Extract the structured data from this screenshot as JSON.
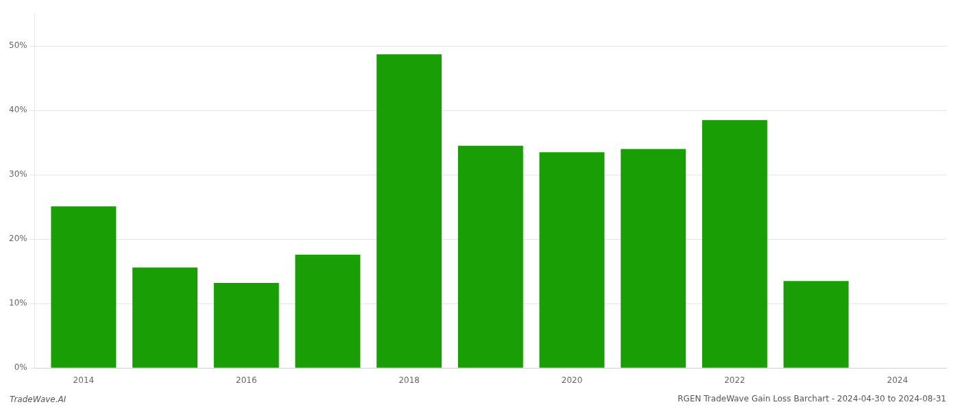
{
  "chart_data": {
    "type": "bar",
    "title": "RGEN TradeWave Gain Loss Barchart - 2024-04-30 to 2024-08-31",
    "annotations": [
      "TradeWave.AI"
    ],
    "x": [
      2014,
      2015,
      2016,
      2017,
      2018,
      2019,
      2020,
      2021,
      2022,
      2023
    ],
    "values": [
      0.251,
      0.156,
      0.132,
      0.176,
      0.487,
      0.345,
      0.335,
      0.34,
      0.385,
      0.135
    ],
    "color": "#1a9e06",
    "xlim": [
      2013.4,
      2024.6
    ],
    "xticks": [
      2014,
      2016,
      2018,
      2020,
      2022,
      2024
    ],
    "ylim": [
      0,
      0.55
    ],
    "yticks": [
      {
        "value": 0.0,
        "label": "0%"
      },
      {
        "value": 0.1,
        "label": "10%"
      },
      {
        "value": 0.2,
        "label": "20%"
      },
      {
        "value": 0.3,
        "label": "30%"
      },
      {
        "value": 0.4,
        "label": "40%"
      },
      {
        "value": 0.5,
        "label": "50%"
      }
    ],
    "grid": true
  }
}
